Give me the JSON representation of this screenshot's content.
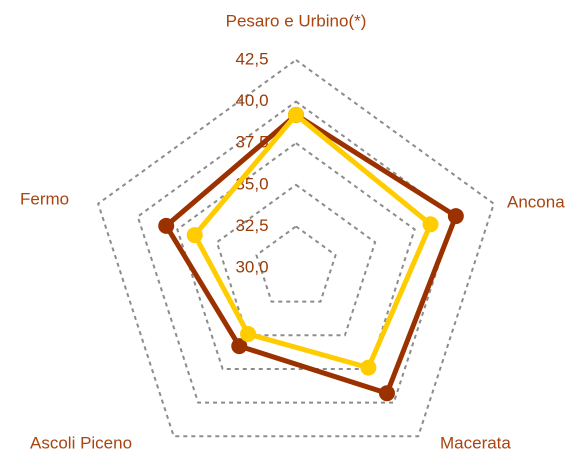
{
  "chart_data": {
    "type": "radar",
    "categories": [
      "Pesaro e Urbino(*)",
      "Ancona",
      "Macerata",
      "Ascoli Piceno",
      "Fermo"
    ],
    "series": [
      {
        "color": "#9c3100",
        "values": [
          39.2,
          40.1,
          39.3,
          35.8,
          38.2
        ]
      },
      {
        "color": "#ffcc00",
        "values": [
          39.2,
          38.5,
          37.4,
          34.9,
          36.4
        ]
      }
    ],
    "ylim": [
      30,
      42.5
    ],
    "yticks": [
      {
        "value": 30,
        "label": "30,0"
      },
      {
        "value": 32.5,
        "label": "32,5"
      },
      {
        "value": 35,
        "label": "35,0"
      },
      {
        "value": 37.5,
        "label": "37,5"
      },
      {
        "value": 40,
        "label": "40,0"
      },
      {
        "value": 42.5,
        "label": "42,5"
      }
    ],
    "grid": true
  }
}
